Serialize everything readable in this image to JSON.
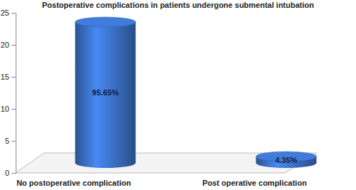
{
  "chart_data": {
    "type": "bar",
    "title": "Postoperative complications in patients undergone submental intubation",
    "categories": [
      "No postoperative complication",
      "Post operative complication"
    ],
    "values": [
      22,
      1
    ],
    "annotations": [
      "95.65%",
      "4.35%"
    ],
    "color": "#3a6fc4",
    "ylim": [
      0,
      25
    ],
    "yticks": [
      0,
      5,
      10,
      15,
      20,
      25
    ],
    "grid": false
  }
}
